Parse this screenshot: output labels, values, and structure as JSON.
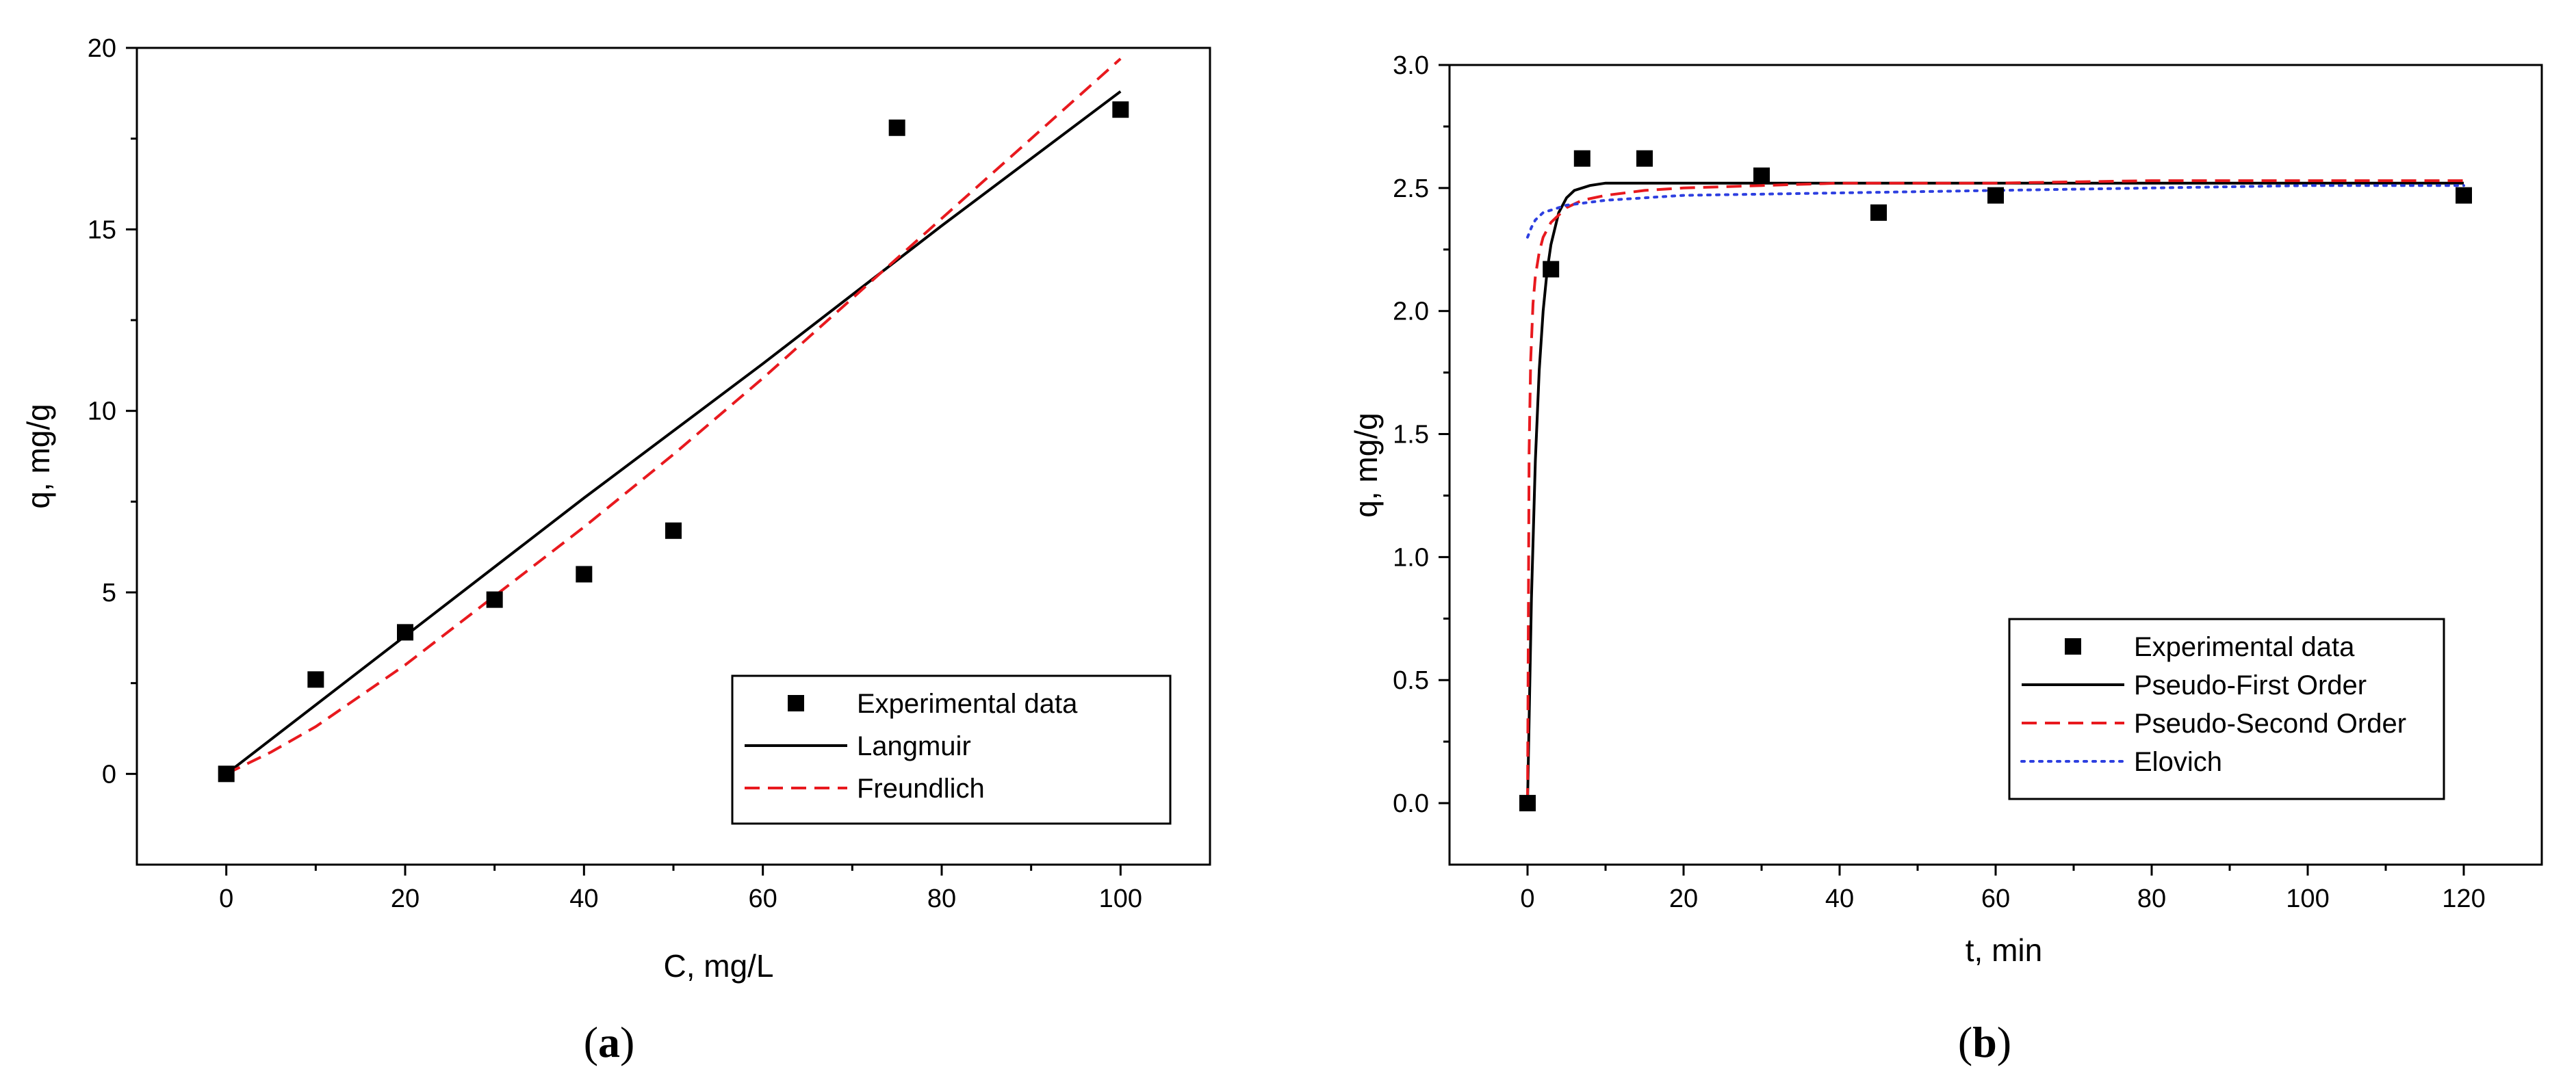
{
  "chart_data": [
    {
      "type": "scatter+line",
      "caption": "a",
      "xlabel": "C, mg/L",
      "ylabel": "q, mg/g",
      "xlim": [
        -10,
        110
      ],
      "ylim": [
        -2.5,
        20
      ],
      "xticks": [
        "0",
        "20",
        "40",
        "60",
        "80",
        "100"
      ],
      "yticks": [
        "0",
        "5",
        "10",
        "15",
        "20"
      ],
      "legend_position": "bottom-right",
      "series": [
        {
          "name": "Experimental data",
          "kind": "points",
          "color": "#000000",
          "x": [
            0,
            10,
            20,
            30,
            40,
            50,
            75,
            100
          ],
          "y": [
            0,
            2.6,
            3.9,
            4.8,
            5.5,
            6.7,
            17.8,
            18.3
          ]
        },
        {
          "name": "Langmuir",
          "kind": "solid",
          "color": "#000000",
          "x": [
            0,
            20,
            40,
            60,
            80,
            100
          ],
          "y": [
            0,
            3.8,
            7.6,
            11.3,
            15.1,
            18.8
          ]
        },
        {
          "name": "Freundlich",
          "kind": "dashed",
          "color": "#e8191e",
          "x": [
            0,
            5,
            10,
            20,
            30,
            40,
            50,
            60,
            70,
            80,
            90,
            100
          ],
          "y": [
            0,
            0.6,
            1.3,
            3.0,
            4.9,
            6.8,
            8.8,
            10.9,
            13.1,
            15.3,
            17.5,
            19.7
          ]
        }
      ]
    },
    {
      "type": "scatter+line",
      "caption": "b",
      "xlabel": "t, min",
      "ylabel": "q, mg/g",
      "xlim": [
        -10,
        130
      ],
      "ylim": [
        -0.25,
        3.0
      ],
      "xticks": [
        "0",
        "20",
        "40",
        "60",
        "80",
        "100",
        "120"
      ],
      "yticks": [
        "0.0",
        "0.5",
        "1.0",
        "1.5",
        "2.0",
        "2.5",
        "3.0"
      ],
      "legend_position": "bottom-right",
      "series": [
        {
          "name": "Experimental data",
          "kind": "points",
          "color": "#000000",
          "x": [
            0,
            3,
            7,
            15,
            30,
            45,
            60,
            120
          ],
          "y": [
            0,
            2.17,
            2.62,
            2.62,
            2.55,
            2.4,
            2.47,
            2.47
          ]
        },
        {
          "name": "Pseudo-First Order",
          "kind": "solid",
          "color": "#000000",
          "x": [
            0,
            0.5,
            1,
            1.5,
            2,
            2.5,
            3,
            4,
            5,
            6,
            7,
            8,
            10,
            15,
            20,
            40,
            60,
            80,
            100,
            120
          ],
          "y": [
            0,
            0.83,
            1.39,
            1.76,
            2.0,
            2.16,
            2.27,
            2.4,
            2.46,
            2.49,
            2.5,
            2.51,
            2.52,
            2.52,
            2.52,
            2.52,
            2.52,
            2.52,
            2.52,
            2.52
          ]
        },
        {
          "name": "Pseudo-Second Order",
          "kind": "dashed",
          "color": "#e8191e",
          "x": [
            0,
            0.2,
            0.4,
            0.7,
            1,
            1.5,
            2,
            3,
            5,
            7,
            10,
            15,
            20,
            30,
            40,
            60,
            80,
            100,
            120
          ],
          "y": [
            0,
            1.43,
            1.8,
            2.03,
            2.14,
            2.24,
            2.3,
            2.36,
            2.42,
            2.45,
            2.47,
            2.49,
            2.5,
            2.51,
            2.52,
            2.52,
            2.53,
            2.53,
            2.53
          ]
        },
        {
          "name": "Elovich",
          "kind": "dotted",
          "color": "#2d3fe0",
          "x": [
            0,
            0.5,
            1,
            2,
            5,
            10,
            20,
            40,
            60,
            80,
            100,
            120
          ],
          "y": [
            2.3,
            2.34,
            2.37,
            2.4,
            2.43,
            2.45,
            2.47,
            2.48,
            2.49,
            2.5,
            2.51,
            2.51
          ]
        }
      ]
    }
  ]
}
